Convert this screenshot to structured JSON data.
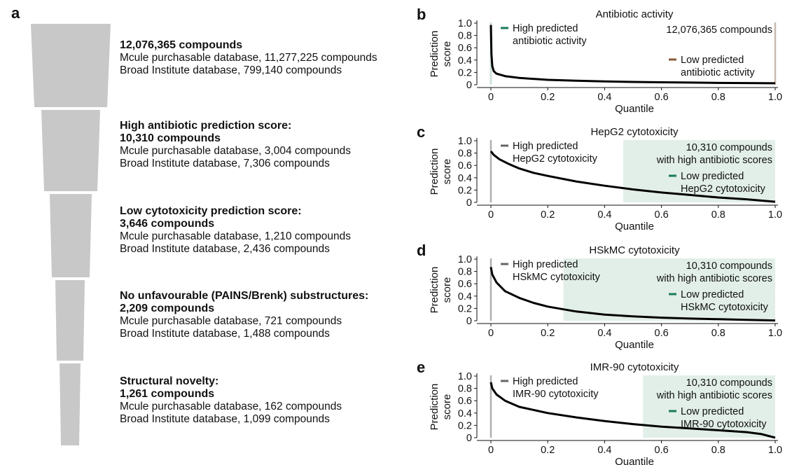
{
  "panel_a": {
    "letter": "a",
    "stages": [
      {
        "title": "12,076,365 compounds",
        "count": "",
        "mcule": "Mcule purchasable database, 11,277,225 compounds",
        "broad": "Broad Institute database, 799,140 compounds"
      },
      {
        "title": "High antibiotic prediction score:",
        "count": "10,310 compounds",
        "mcule": "Mcule purchasable database, 3,004 compounds",
        "broad": "Broad Institute database, 7,306 compounds"
      },
      {
        "title": "Low cytotoxicity prediction score:",
        "count": "3,646 compounds",
        "mcule": "Mcule purchasable database, 1,210 compounds",
        "broad": "Broad Institute database, 2,436 compounds"
      },
      {
        "title": "No unfavourable (PAINS/Brenk) substructures:",
        "count": "2,209 compounds",
        "mcule": "Mcule purchasable database, 721 compounds",
        "broad": "Broad Institute database, 1,488 compounds"
      },
      {
        "title": "Structural novelty:",
        "count": "1,261 compounds",
        "mcule": "Mcule purchasable database, 162 compounds",
        "broad": "Broad Institute database, 1,099 compounds"
      }
    ]
  },
  "colors": {
    "funnel": "#c8c8c8",
    "curve": "#000000",
    "shade": "#e2efe8",
    "high_antibiotic": "#1a7a5a",
    "low_antibiotic": "#8a5a3a",
    "high_tox": "#666666",
    "low_tox": "#1a7a5a",
    "marker_line": "#b0b0b0"
  },
  "chart_data": [
    {
      "letter": "b",
      "type": "line",
      "title": "Antibiotic activity",
      "xlabel": "Quantile",
      "ylabel": [
        "Prediction",
        "score"
      ],
      "xlim": [
        0,
        1
      ],
      "ylim": [
        0,
        1
      ],
      "xticks": [
        "0",
        "0.2",
        "0.4",
        "0.6",
        "0.8",
        "1.0"
      ],
      "yticks": [
        "0",
        "0.2",
        "0.4",
        "0.6",
        "0.8",
        "1.0"
      ],
      "shade_from": null,
      "x": [
        0,
        0.002,
        0.005,
        0.01,
        0.02,
        0.05,
        0.1,
        0.2,
        0.3,
        0.4,
        0.5,
        0.6,
        0.7,
        0.8,
        0.9,
        1.0
      ],
      "y": [
        0.97,
        0.5,
        0.3,
        0.22,
        0.18,
        0.14,
        0.11,
        0.08,
        0.065,
        0.055,
        0.045,
        0.04,
        0.035,
        0.03,
        0.027,
        0.024
      ],
      "legend_high": [
        "High predicted",
        "antibiotic activity"
      ],
      "legend_low": [
        "Low predicted",
        "antibiotic activity"
      ],
      "count_note": [
        "12,076,365 compounds"
      ]
    },
    {
      "letter": "c",
      "type": "line",
      "title": "HepG2 cytotoxicity",
      "xlabel": "Quantile",
      "ylabel": [
        "Prediction",
        "score"
      ],
      "xlim": [
        0,
        1
      ],
      "ylim": [
        0,
        1
      ],
      "xticks": [
        "0",
        "0.2",
        "0.4",
        "0.6",
        "0.8",
        "1.0"
      ],
      "yticks": [
        "0",
        "0.2",
        "0.4",
        "0.6",
        "0.8",
        "1.0"
      ],
      "shade_from": 0.465,
      "x": [
        0,
        0.01,
        0.03,
        0.06,
        0.1,
        0.15,
        0.2,
        0.3,
        0.4,
        0.5,
        0.6,
        0.7,
        0.8,
        0.9,
        0.95,
        1.0
      ],
      "y": [
        0.83,
        0.77,
        0.7,
        0.63,
        0.55,
        0.48,
        0.43,
        0.34,
        0.27,
        0.21,
        0.16,
        0.12,
        0.08,
        0.05,
        0.03,
        0.01
      ],
      "legend_high": [
        "High predicted",
        "HepG2 cytotoxicity"
      ],
      "legend_low": [
        "Low predicted",
        "HepG2 cytotoxicity"
      ],
      "count_note": [
        "10,310 compounds",
        "with high antibiotic scores"
      ]
    },
    {
      "letter": "d",
      "type": "line",
      "title": "HSkMC cytotoxicity",
      "xlabel": "Quantile",
      "ylabel": [
        "Prediction",
        "score"
      ],
      "xlim": [
        0,
        1
      ],
      "ylim": [
        0,
        1
      ],
      "xticks": [
        "0",
        "0.2",
        "0.4",
        "0.6",
        "0.8",
        "1.0"
      ],
      "yticks": [
        "0",
        "0.2",
        "0.4",
        "0.6",
        "0.8",
        "1.0"
      ],
      "shade_from": 0.255,
      "x": [
        0,
        0.005,
        0.02,
        0.05,
        0.1,
        0.15,
        0.2,
        0.3,
        0.4,
        0.5,
        0.6,
        0.7,
        0.8,
        0.9,
        1.0
      ],
      "y": [
        0.87,
        0.75,
        0.62,
        0.48,
        0.37,
        0.29,
        0.23,
        0.15,
        0.1,
        0.07,
        0.05,
        0.035,
        0.025,
        0.015,
        0.005
      ],
      "legend_high": [
        "High predicted",
        "HSkMC cytotoxicity"
      ],
      "legend_low": [
        "Low predicted",
        "HSkMC cytotoxicity"
      ],
      "count_note": [
        "10,310 compounds",
        "with high antibiotic scores"
      ]
    },
    {
      "letter": "e",
      "type": "line",
      "title": "IMR-90 cytotoxicity",
      "xlabel": "Quantile",
      "ylabel": [
        "Prediction",
        "score"
      ],
      "xlim": [
        0,
        1
      ],
      "ylim": [
        0,
        1
      ],
      "xticks": [
        "0",
        "0.2",
        "0.4",
        "0.6",
        "0.8",
        "1.0"
      ],
      "yticks": [
        "0",
        "0.2",
        "0.4",
        "0.6",
        "0.8",
        "1.0"
      ],
      "shade_from": 0.535,
      "x": [
        0,
        0.005,
        0.02,
        0.05,
        0.1,
        0.2,
        0.3,
        0.4,
        0.5,
        0.6,
        0.7,
        0.8,
        0.9,
        0.95,
        1.0
      ],
      "y": [
        0.9,
        0.8,
        0.7,
        0.6,
        0.5,
        0.4,
        0.33,
        0.27,
        0.22,
        0.18,
        0.15,
        0.12,
        0.09,
        0.06,
        0.0
      ],
      "legend_high": [
        "High predicted",
        "IMR-90 cytotoxicity"
      ],
      "legend_low": [
        "Low predicted",
        "IMR-90 cytotoxicity"
      ],
      "count_note": [
        "10,310 compounds",
        "with high antibiotic scores"
      ]
    }
  ]
}
